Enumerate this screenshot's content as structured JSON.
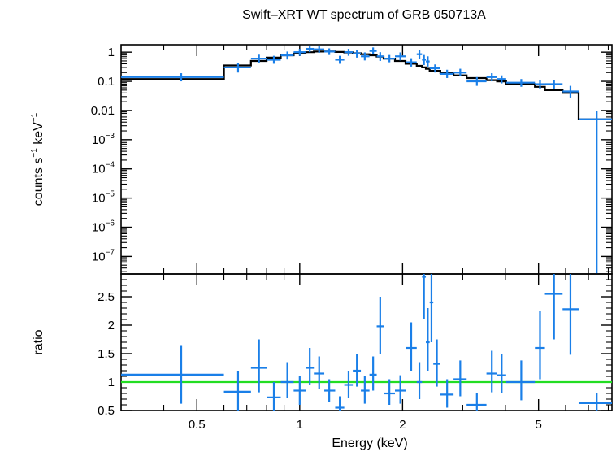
{
  "chart_data": [
    {
      "type": "scatter",
      "panel": "spectrum",
      "title": "Swift–XRT WT spectrum of GRB 050713A",
      "ylabel_parts": [
        "counts s",
        "−1",
        " keV",
        "−1"
      ],
      "ylabel": "counts s⁻¹ keV⁻¹",
      "xscale": "log",
      "yscale": "log",
      "xlim": [
        0.3,
        8.2
      ],
      "ylim": [
        2.5e-08,
        1.8
      ],
      "yticks": [
        {
          "v": 1,
          "label": "1"
        },
        {
          "v": 0.1,
          "label": "0.1"
        },
        {
          "v": 0.01,
          "label": "0.01"
        },
        {
          "v": 0.001,
          "base": "10",
          "exp": "−3"
        },
        {
          "v": 0.0001,
          "base": "10",
          "exp": "−4"
        },
        {
          "v": 1e-05,
          "base": "10",
          "exp": "−5"
        },
        {
          "v": 1e-06,
          "base": "10",
          "exp": "−6"
        },
        {
          "v": 1e-07,
          "base": "10",
          "exp": "−7"
        }
      ],
      "data_color": "#1a7fe8",
      "model_color": "#000000",
      "points": [
        {
          "x": 0.45,
          "xlo": 0.3,
          "xhi": 0.6,
          "y": 0.14,
          "ylo": 0.1,
          "yhi": 0.19
        },
        {
          "x": 0.66,
          "xlo": 0.6,
          "xhi": 0.72,
          "y": 0.3,
          "ylo": 0.2,
          "yhi": 0.42
        },
        {
          "x": 0.76,
          "xlo": 0.72,
          "xhi": 0.8,
          "y": 0.6,
          "ylo": 0.42,
          "yhi": 0.82
        },
        {
          "x": 0.84,
          "xlo": 0.8,
          "xhi": 0.88,
          "y": 0.55,
          "ylo": 0.4,
          "yhi": 0.75
        },
        {
          "x": 0.92,
          "xlo": 0.88,
          "xhi": 0.96,
          "y": 0.78,
          "ylo": 0.56,
          "yhi": 1.05
        },
        {
          "x": 1.0,
          "xlo": 0.96,
          "xhi": 1.04,
          "y": 1.0,
          "ylo": 0.75,
          "yhi": 1.3
        },
        {
          "x": 1.07,
          "xlo": 1.04,
          "xhi": 1.1,
          "y": 1.3,
          "ylo": 1.0,
          "yhi": 1.7
        },
        {
          "x": 1.14,
          "xlo": 1.1,
          "xhi": 1.18,
          "y": 1.25,
          "ylo": 0.95,
          "yhi": 1.6
        },
        {
          "x": 1.22,
          "xlo": 1.18,
          "xhi": 1.27,
          "y": 1.05,
          "ylo": 0.8,
          "yhi": 1.35
        },
        {
          "x": 1.31,
          "xlo": 1.27,
          "xhi": 1.35,
          "y": 0.55,
          "ylo": 0.4,
          "yhi": 0.75
        },
        {
          "x": 1.39,
          "xlo": 1.35,
          "xhi": 1.43,
          "y": 1.0,
          "ylo": 0.75,
          "yhi": 1.3
        },
        {
          "x": 1.47,
          "xlo": 1.43,
          "xhi": 1.51,
          "y": 0.9,
          "ylo": 0.65,
          "yhi": 1.2
        },
        {
          "x": 1.55,
          "xlo": 1.51,
          "xhi": 1.6,
          "y": 0.72,
          "ylo": 0.52,
          "yhi": 0.98
        },
        {
          "x": 1.64,
          "xlo": 1.6,
          "xhi": 1.68,
          "y": 1.1,
          "ylo": 0.85,
          "yhi": 1.45
        },
        {
          "x": 1.72,
          "xlo": 1.68,
          "xhi": 1.76,
          "y": 0.72,
          "ylo": 0.5,
          "yhi": 1.0
        },
        {
          "x": 1.83,
          "xlo": 1.76,
          "xhi": 1.9,
          "y": 0.6,
          "ylo": 0.45,
          "yhi": 0.8
        },
        {
          "x": 1.97,
          "xlo": 1.9,
          "xhi": 2.04,
          "y": 0.72,
          "ylo": 0.52,
          "yhi": 0.98
        },
        {
          "x": 2.12,
          "xlo": 2.04,
          "xhi": 2.2,
          "y": 0.45,
          "ylo": 0.32,
          "yhi": 0.62
        },
        {
          "x": 2.24,
          "xlo": 2.2,
          "xhi": 2.28,
          "y": 0.85,
          "ylo": 0.6,
          "yhi": 1.2
        },
        {
          "x": 2.31,
          "xlo": 2.28,
          "xhi": 2.34,
          "y": 0.55,
          "ylo": 0.36,
          "yhi": 0.8
        },
        {
          "x": 2.37,
          "xlo": 2.34,
          "xhi": 2.4,
          "y": 0.48,
          "ylo": 0.32,
          "yhi": 0.72
        },
        {
          "x": 2.49,
          "xlo": 2.4,
          "xhi": 2.58,
          "y": 0.28,
          "ylo": 0.2,
          "yhi": 0.38
        },
        {
          "x": 2.7,
          "xlo": 2.58,
          "xhi": 2.82,
          "y": 0.18,
          "ylo": 0.13,
          "yhi": 0.25
        },
        {
          "x": 2.95,
          "xlo": 2.82,
          "xhi": 3.08,
          "y": 0.2,
          "ylo": 0.15,
          "yhi": 0.27
        },
        {
          "x": 3.3,
          "xlo": 3.08,
          "xhi": 3.52,
          "y": 0.1,
          "ylo": 0.07,
          "yhi": 0.14
        },
        {
          "x": 3.65,
          "xlo": 3.52,
          "xhi": 3.78,
          "y": 0.14,
          "ylo": 0.1,
          "yhi": 0.19
        },
        {
          "x": 3.9,
          "xlo": 3.78,
          "xhi": 4.02,
          "y": 0.12,
          "ylo": 0.085,
          "yhi": 0.16
        },
        {
          "x": 4.45,
          "xlo": 4.02,
          "xhi": 4.88,
          "y": 0.09,
          "ylo": 0.065,
          "yhi": 0.12
        },
        {
          "x": 5.05,
          "xlo": 4.88,
          "xhi": 5.22,
          "y": 0.08,
          "ylo": 0.055,
          "yhi": 0.11
        },
        {
          "x": 5.55,
          "xlo": 5.22,
          "xhi": 5.88,
          "y": 0.08,
          "ylo": 0.055,
          "yhi": 0.11
        },
        {
          "x": 6.2,
          "xlo": 5.88,
          "xhi": 6.55,
          "y": 0.045,
          "ylo": 0.028,
          "yhi": 0.07
        },
        {
          "x": 7.4,
          "xlo": 6.55,
          "xhi": 8.2,
          "y": 0.005,
          "ylo": 2.5e-08,
          "yhi": 0.01
        }
      ],
      "model_step": [
        {
          "x0": 0.3,
          "x1": 0.6,
          "y": 0.12
        },
        {
          "x0": 0.6,
          "x1": 0.72,
          "y": 0.35
        },
        {
          "x0": 0.72,
          "x1": 0.8,
          "y": 0.5
        },
        {
          "x0": 0.8,
          "x1": 0.88,
          "y": 0.65
        },
        {
          "x0": 0.88,
          "x1": 0.96,
          "y": 0.78
        },
        {
          "x0": 0.96,
          "x1": 1.04,
          "y": 0.9
        },
        {
          "x0": 1.04,
          "x1": 1.1,
          "y": 1.0
        },
        {
          "x0": 1.1,
          "x1": 1.18,
          "y": 1.05
        },
        {
          "x0": 1.18,
          "x1": 1.27,
          "y": 1.05
        },
        {
          "x0": 1.27,
          "x1": 1.35,
          "y": 1.02
        },
        {
          "x0": 1.35,
          "x1": 1.43,
          "y": 0.98
        },
        {
          "x0": 1.43,
          "x1": 1.51,
          "y": 0.92
        },
        {
          "x0": 1.51,
          "x1": 1.6,
          "y": 0.85
        },
        {
          "x0": 1.6,
          "x1": 1.68,
          "y": 0.78
        },
        {
          "x0": 1.68,
          "x1": 1.76,
          "y": 0.7
        },
        {
          "x0": 1.76,
          "x1": 1.9,
          "y": 0.6
        },
        {
          "x0": 1.9,
          "x1": 2.04,
          "y": 0.5
        },
        {
          "x0": 2.04,
          "x1": 2.2,
          "y": 0.4
        },
        {
          "x0": 2.2,
          "x1": 2.28,
          "y": 0.34
        },
        {
          "x0": 2.28,
          "x1": 2.34,
          "y": 0.3
        },
        {
          "x0": 2.34,
          "x1": 2.4,
          "y": 0.27
        },
        {
          "x0": 2.4,
          "x1": 2.58,
          "y": 0.23
        },
        {
          "x0": 2.58,
          "x1": 2.82,
          "y": 0.19
        },
        {
          "x0": 2.82,
          "x1": 3.08,
          "y": 0.16
        },
        {
          "x0": 3.08,
          "x1": 3.52,
          "y": 0.13
        },
        {
          "x0": 3.52,
          "x1": 3.78,
          "y": 0.11
        },
        {
          "x0": 3.78,
          "x1": 4.02,
          "y": 0.1
        },
        {
          "x0": 4.02,
          "x1": 4.88,
          "y": 0.08
        },
        {
          "x0": 4.88,
          "x1": 5.22,
          "y": 0.065
        },
        {
          "x0": 5.22,
          "x1": 5.88,
          "y": 0.05
        },
        {
          "x0": 5.88,
          "x1": 6.55,
          "y": 0.04
        },
        {
          "x0": 6.55,
          "x1": 8.2,
          "y": 0.005
        }
      ]
    },
    {
      "type": "scatter",
      "panel": "ratio",
      "xlabel": "Energy (keV)",
      "ylabel": "ratio",
      "xscale": "log",
      "xlim": [
        0.3,
        8.2
      ],
      "ylim": [
        0.5,
        2.9
      ],
      "xticks": [
        {
          "v": 0.5,
          "label": "0.5"
        },
        {
          "v": 1,
          "label": "1"
        },
        {
          "v": 2,
          "label": "2"
        },
        {
          "v": 5,
          "label": "5"
        }
      ],
      "yticks": [
        {
          "v": 0.5,
          "label": "0.5"
        },
        {
          "v": 1,
          "label": "1"
        },
        {
          "v": 1.5,
          "label": "1.5"
        },
        {
          "v": 2,
          "label": "2"
        },
        {
          "v": 2.5,
          "label": "2.5"
        }
      ],
      "reference_line": 1,
      "reference_color": "#22dd22",
      "points": [
        {
          "x": 0.45,
          "xlo": 0.3,
          "xhi": 0.6,
          "y": 1.13,
          "ylo": 0.62,
          "yhi": 1.65
        },
        {
          "x": 0.66,
          "xlo": 0.6,
          "xhi": 0.72,
          "y": 0.83,
          "ylo": 0.5,
          "yhi": 1.2
        },
        {
          "x": 0.76,
          "xlo": 0.72,
          "xhi": 0.8,
          "y": 1.25,
          "ylo": 0.82,
          "yhi": 1.75
        },
        {
          "x": 0.84,
          "xlo": 0.8,
          "xhi": 0.88,
          "y": 0.73,
          "ylo": 0.5,
          "yhi": 1.0
        },
        {
          "x": 0.92,
          "xlo": 0.88,
          "xhi": 0.96,
          "y": 1.0,
          "ylo": 0.72,
          "yhi": 1.35
        },
        {
          "x": 1.0,
          "xlo": 0.96,
          "xhi": 1.04,
          "y": 0.85,
          "ylo": 0.6,
          "yhi": 1.1
        },
        {
          "x": 1.07,
          "xlo": 1.04,
          "xhi": 1.1,
          "y": 1.25,
          "ylo": 0.95,
          "yhi": 1.6
        },
        {
          "x": 1.14,
          "xlo": 1.1,
          "xhi": 1.18,
          "y": 1.15,
          "ylo": 0.88,
          "yhi": 1.45
        },
        {
          "x": 1.22,
          "xlo": 1.18,
          "xhi": 1.27,
          "y": 0.85,
          "ylo": 0.65,
          "yhi": 1.05
        },
        {
          "x": 1.31,
          "xlo": 1.27,
          "xhi": 1.35,
          "y": 0.55,
          "ylo": 0.4,
          "yhi": 0.75
        },
        {
          "x": 1.39,
          "xlo": 1.35,
          "xhi": 1.43,
          "y": 0.95,
          "ylo": 0.72,
          "yhi": 1.2
        },
        {
          "x": 1.47,
          "xlo": 1.43,
          "xhi": 1.51,
          "y": 1.2,
          "ylo": 0.92,
          "yhi": 1.5
        },
        {
          "x": 1.55,
          "xlo": 1.51,
          "xhi": 1.6,
          "y": 0.85,
          "ylo": 0.62,
          "yhi": 1.1
        },
        {
          "x": 1.64,
          "xlo": 1.6,
          "xhi": 1.68,
          "y": 1.13,
          "ylo": 0.85,
          "yhi": 1.45
        },
        {
          "x": 1.72,
          "xlo": 1.68,
          "xhi": 1.76,
          "y": 1.98,
          "ylo": 1.5,
          "yhi": 2.5
        },
        {
          "x": 1.83,
          "xlo": 1.76,
          "xhi": 1.9,
          "y": 0.8,
          "ylo": 0.6,
          "yhi": 1.05
        },
        {
          "x": 1.97,
          "xlo": 1.9,
          "xhi": 2.04,
          "y": 0.85,
          "ylo": 0.62,
          "yhi": 1.12
        },
        {
          "x": 2.12,
          "xlo": 2.04,
          "xhi": 2.2,
          "y": 1.6,
          "ylo": 1.2,
          "yhi": 2.05
        },
        {
          "x": 2.24,
          "xlo": 2.2,
          "xhi": 2.28,
          "y": 1.0,
          "ylo": 0.7,
          "yhi": 1.35
        },
        {
          "x": 2.31,
          "xlo": 2.28,
          "xhi": 2.34,
          "y": 2.85,
          "ylo": 2.1,
          "yhi": 2.9
        },
        {
          "x": 2.37,
          "xlo": 2.34,
          "xhi": 2.4,
          "y": 1.7,
          "ylo": 1.2,
          "yhi": 2.3
        },
        {
          "x": 2.43,
          "xlo": 2.4,
          "xhi": 2.46,
          "y": 2.4,
          "ylo": 1.7,
          "yhi": 2.9
        },
        {
          "x": 2.52,
          "xlo": 2.46,
          "xhi": 2.58,
          "y": 1.32,
          "ylo": 0.92,
          "yhi": 1.75
        },
        {
          "x": 2.7,
          "xlo": 2.58,
          "xhi": 2.82,
          "y": 0.78,
          "ylo": 0.55,
          "yhi": 1.05
        },
        {
          "x": 2.95,
          "xlo": 2.82,
          "xhi": 3.08,
          "y": 1.05,
          "ylo": 0.75,
          "yhi": 1.38
        },
        {
          "x": 3.3,
          "xlo": 3.08,
          "xhi": 3.52,
          "y": 0.6,
          "ylo": 0.5,
          "yhi": 0.8
        },
        {
          "x": 3.65,
          "xlo": 3.52,
          "xhi": 3.78,
          "y": 1.15,
          "ylo": 0.82,
          "yhi": 1.55
        },
        {
          "x": 3.9,
          "xlo": 3.78,
          "xhi": 4.02,
          "y": 1.12,
          "ylo": 0.8,
          "yhi": 1.5
        },
        {
          "x": 4.45,
          "xlo": 4.02,
          "xhi": 4.88,
          "y": 1.0,
          "ylo": 0.68,
          "yhi": 1.38
        },
        {
          "x": 5.05,
          "xlo": 4.88,
          "xhi": 5.22,
          "y": 1.6,
          "ylo": 1.05,
          "yhi": 2.25
        },
        {
          "x": 5.55,
          "xlo": 5.22,
          "xhi": 5.88,
          "y": 2.55,
          "ylo": 1.75,
          "yhi": 2.9
        },
        {
          "x": 6.2,
          "xlo": 5.88,
          "xhi": 6.55,
          "y": 2.28,
          "ylo": 1.48,
          "yhi": 2.9
        },
        {
          "x": 7.4,
          "xlo": 6.55,
          "xhi": 8.2,
          "y": 0.63,
          "ylo": 0.5,
          "yhi": 0.8
        }
      ]
    }
  ]
}
